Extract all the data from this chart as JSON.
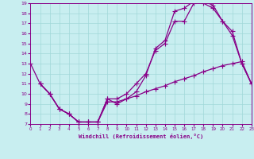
{
  "xlabel": "Windchill (Refroidissement éolien,°C)",
  "background_color": "#c8eef0",
  "grid_color": "#a0d8d8",
  "line_color": "#880088",
  "xmin": 0,
  "xmax": 23,
  "ymin": 7,
  "ymax": 19,
  "line1_x": [
    0,
    1,
    2,
    3,
    4,
    5,
    6,
    7,
    8,
    9,
    10,
    11,
    12,
    13,
    14,
    15,
    16,
    17,
    18,
    19,
    20,
    21,
    22,
    23
  ],
  "line1_y": [
    13,
    11,
    10,
    8.5,
    8,
    7.2,
    7.2,
    7.2,
    9.5,
    9.5,
    10,
    11,
    12,
    14.3,
    15,
    17.2,
    17.2,
    19.0,
    19.2,
    18.8,
    17.2,
    15.8,
    13,
    11
  ],
  "line2_x": [
    1,
    2,
    3,
    4,
    5,
    6,
    7,
    8,
    9,
    10,
    11,
    12,
    13,
    14,
    15,
    16,
    17,
    18,
    19,
    20,
    21,
    22,
    23
  ],
  "line2_y": [
    11,
    10,
    8.5,
    8,
    7.2,
    7.2,
    7.2,
    9.5,
    9.0,
    9.5,
    10.2,
    11.8,
    14.5,
    15.3,
    18.2,
    18.5,
    19.2,
    19.0,
    18.5,
    17.2,
    16.2,
    13,
    11
  ],
  "line3_x": [
    1,
    2,
    3,
    4,
    5,
    6,
    7,
    8,
    9,
    10,
    11,
    12,
    13,
    14,
    15,
    16,
    17,
    18,
    19,
    20,
    21,
    22,
    23
  ],
  "line3_y": [
    11,
    10,
    8.5,
    8,
    7.2,
    7.2,
    7.2,
    9.2,
    9.2,
    9.5,
    9.8,
    10.2,
    10.5,
    10.8,
    11.2,
    11.5,
    11.8,
    12.2,
    12.5,
    12.8,
    13.0,
    13.2,
    11
  ],
  "yticks": [
    7,
    8,
    9,
    10,
    11,
    12,
    13,
    14,
    15,
    16,
    17,
    18,
    19
  ],
  "xticks": [
    0,
    1,
    2,
    3,
    4,
    5,
    6,
    7,
    8,
    9,
    10,
    11,
    12,
    13,
    14,
    15,
    16,
    17,
    18,
    19,
    20,
    21,
    22,
    23
  ]
}
